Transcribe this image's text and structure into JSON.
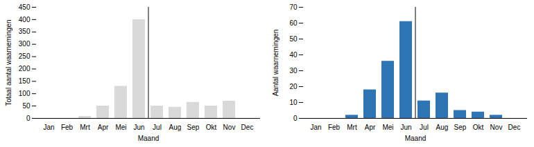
{
  "chart_data": [
    {
      "type": "bar",
      "categories": [
        "Jan",
        "Feb",
        "Mrt",
        "Apr",
        "Mei",
        "Jun",
        "Jul",
        "Aug",
        "Sep",
        "Okt",
        "Nov",
        "Dec"
      ],
      "values": [
        0,
        0,
        8,
        50,
        130,
        400,
        50,
        45,
        65,
        50,
        70,
        0
      ],
      "color": "#d9d9d9",
      "ylabel": "Totaal aantal waarnemingen",
      "xlabel": "Maand",
      "ylim": [
        0,
        450
      ],
      "yticks": [
        0,
        50,
        100,
        150,
        200,
        250,
        300,
        350,
        400,
        450
      ]
    },
    {
      "type": "bar",
      "categories": [
        "Jan",
        "Feb",
        "Mrt",
        "Apr",
        "Mei",
        "Jun",
        "Jul",
        "Aug",
        "Sep",
        "Okt",
        "Nov",
        "Dec"
      ],
      "values": [
        0,
        0,
        2,
        18,
        36,
        61,
        11,
        16,
        5,
        4,
        2,
        0
      ],
      "color": "#2e75b6",
      "ylabel": "Aantal waarnemingen",
      "xlabel": "Maand",
      "ylim": [
        0,
        70
      ],
      "yticks": [
        0,
        10,
        20,
        30,
        40,
        50,
        60,
        70
      ]
    }
  ]
}
